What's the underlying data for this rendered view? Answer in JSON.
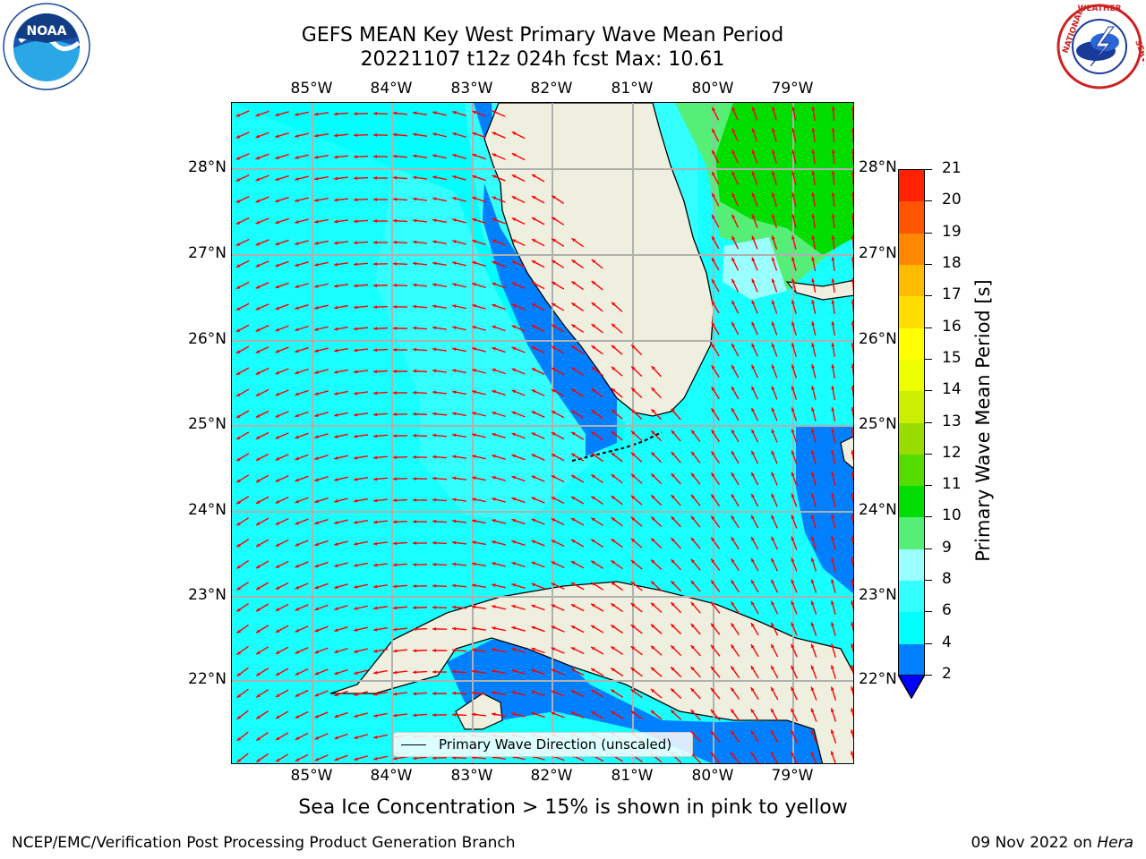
{
  "title": {
    "line1": "GEFS MEAN Key West Primary Wave Mean Period",
    "line2": "20221107 t12z 024h fcst   Max: 10.61"
  },
  "logos": {
    "noaa": {
      "text": "NOAA",
      "ring_text": "NATIONAL OCEANIC AND ATMOSPHERIC ADMINISTRATION · U.S. DEPARTMENT OF COMMERCE"
    },
    "nws": {
      "ring_text": "NATIONAL WEATHER SERVICE"
    }
  },
  "map": {
    "lon_labels": [
      "85°W",
      "84°W",
      "83°W",
      "82°W",
      "81°W",
      "80°W",
      "79°W"
    ],
    "lat_labels": [
      "28°N",
      "27°N",
      "26°N",
      "25°N",
      "24°N",
      "23°N",
      "22°N"
    ],
    "lon_range": [
      -86.0,
      -78.3
    ],
    "lat_range": [
      21.0,
      28.8
    ],
    "arrow_color": "#ff0000",
    "land_color": "#efefdf"
  },
  "legend": {
    "label": "Primary Wave Direction (unscaled)"
  },
  "colorbar": {
    "title": "Primary Wave Mean Period [s]",
    "ticks": [
      "2",
      "4",
      "6",
      "8",
      "9",
      "10",
      "11",
      "12",
      "13",
      "14",
      "15",
      "16",
      "17",
      "18",
      "19",
      "20",
      "21"
    ],
    "colors": [
      "#0080ff",
      "#00ffff",
      "#33ffff",
      "#99ffff",
      "#55ee77",
      "#00dd00",
      "#55dd00",
      "#99dd00",
      "#ccee00",
      "#eeff00",
      "#ffff00",
      "#ffdd00",
      "#ffbb00",
      "#ff8800",
      "#ff5500",
      "#ff2200"
    ],
    "under_color": "#0000ff"
  },
  "subtitle": "Sea Ice Concentration > 15% is shown in pink to yellow",
  "footer": {
    "left": "NCEP/EMC/Verification Post Processing Product Generation Branch",
    "right_prefix": "09 Nov 2022 on ",
    "right_host": "Hera"
  }
}
